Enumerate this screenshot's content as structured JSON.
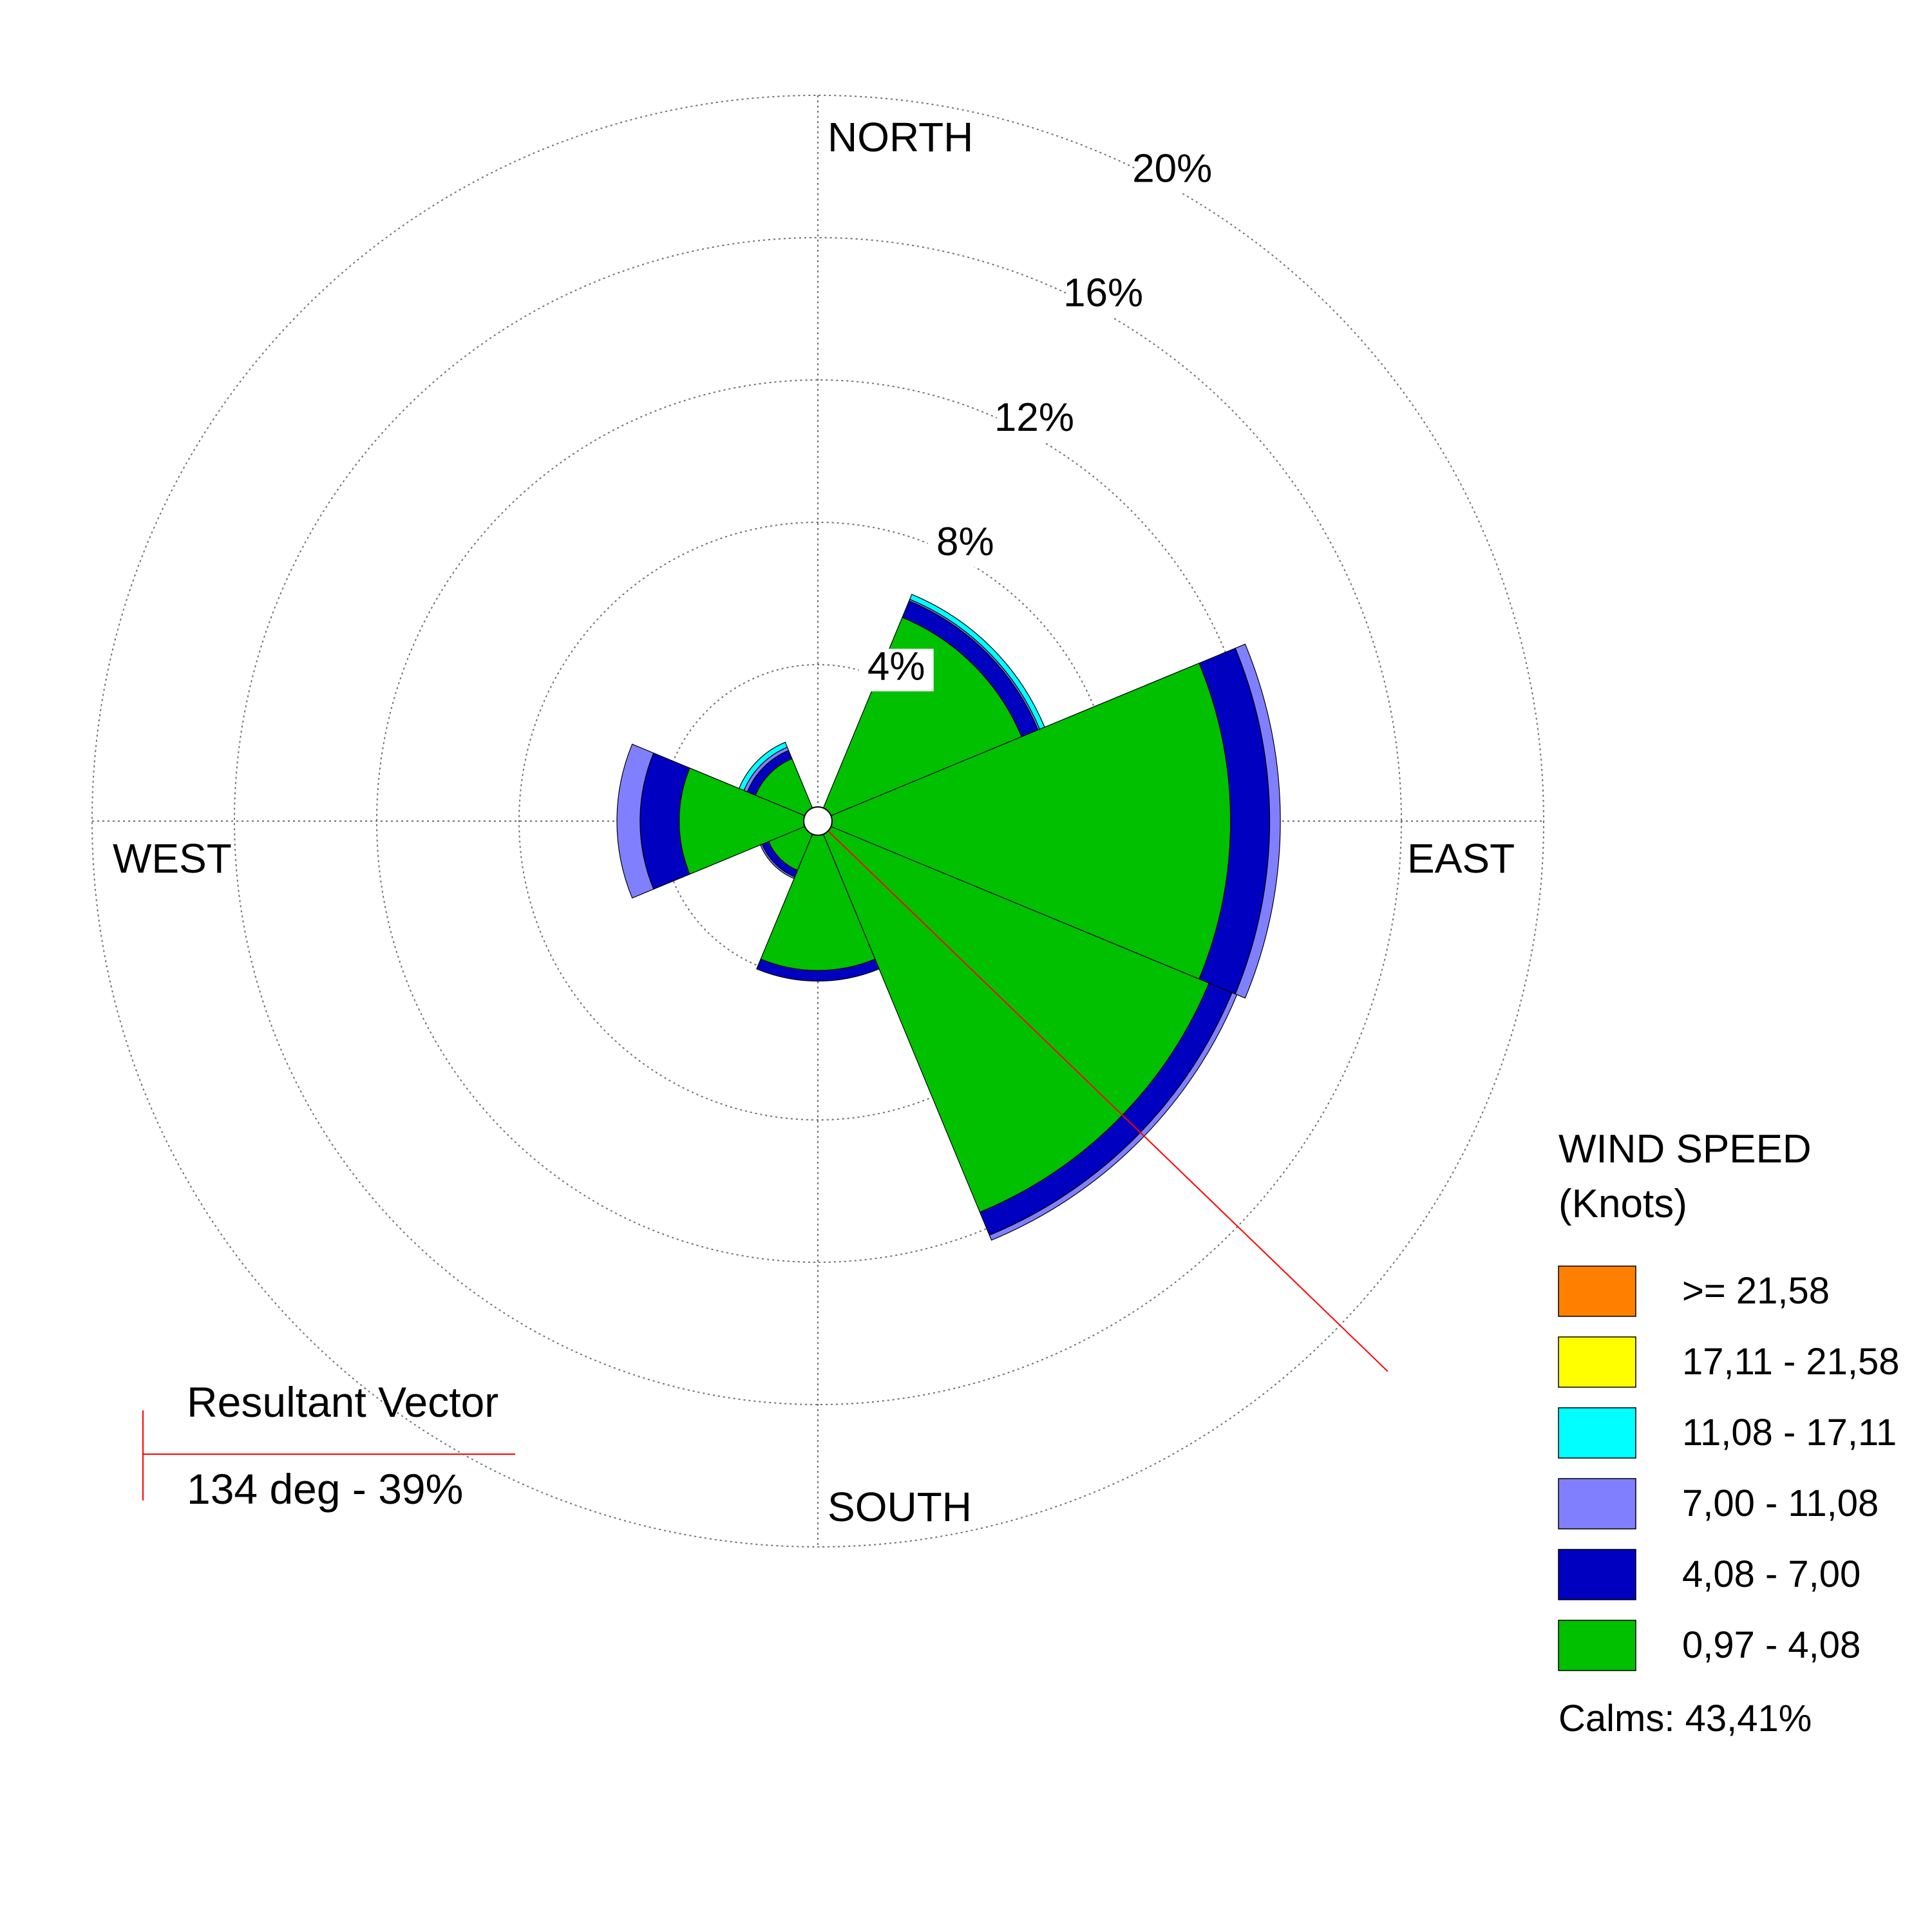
{
  "chart_data": {
    "type": "wind-rose",
    "directions": {
      "north": "NORTH",
      "east": "EAST",
      "south": "SOUTH",
      "west": "WEST"
    },
    "radial_ticks": [
      {
        "value": 4,
        "label": "4%"
      },
      {
        "value": 8,
        "label": "8%"
      },
      {
        "value": 12,
        "label": "12%"
      },
      {
        "value": 16,
        "label": "16%"
      },
      {
        "value": 20,
        "label": "20%"
      }
    ],
    "radial_max": 20,
    "units": "percent of observations",
    "legend": {
      "title_line1": "WIND SPEED",
      "title_line2": "(Knots)",
      "bins": [
        {
          "label": ">= 21,58",
          "color": "#ff8000"
        },
        {
          "label": "17,11 - 21,58",
          "color": "#ffff00"
        },
        {
          "label": "11,08 - 17,11",
          "color": "#00ffff"
        },
        {
          "label": "7,00 - 11,08",
          "color": "#8080ff"
        },
        {
          "label": "4,08 - 7,00",
          "color": "#0000c0"
        },
        {
          "label": "0,97 - 4,08",
          "color": "#00c000"
        }
      ],
      "calms": "Calms: 43,41%"
    },
    "speed_bins_inner_to_outer": [
      "0,97 - 4,08",
      "4,08 - 7,00",
      "7,00 - 11,08",
      "11,08 - 17,11",
      "17,11 - 21,58",
      ">= 21,58"
    ],
    "bin_colors_inner_to_outer": [
      "#00c000",
      "#0000c0",
      "#8080ff",
      "#00ffff",
      "#ffff00",
      "#ff8000"
    ],
    "sector_width_deg": 45,
    "sectors": [
      {
        "direction": "NNE",
        "center_deg": 22.5,
        "values": [
          0,
          0,
          0,
          0,
          0,
          0
        ]
      },
      {
        "direction": "NE-ENE",
        "center_deg": 45,
        "values": [
          5.8,
          0.5,
          0.05,
          0.15,
          0,
          0
        ]
      },
      {
        "direction": "E",
        "center_deg": 90,
        "values": [
          11.2,
          1.1,
          0.3,
          0,
          0,
          0
        ]
      },
      {
        "direction": "SE",
        "center_deg": 135,
        "values": [
          11.5,
          0.7,
          0.15,
          0,
          0,
          0
        ]
      },
      {
        "direction": "SSW",
        "center_deg": 180,
        "values": [
          3.8,
          0.3,
          0,
          0,
          0,
          0
        ]
      },
      {
        "direction": "SW",
        "center_deg": 225,
        "values": [
          1.1,
          0.2,
          0.05,
          0,
          0,
          0
        ]
      },
      {
        "direction": "W",
        "center_deg": 270,
        "values": [
          3.5,
          1.1,
          0.65,
          0,
          0,
          0
        ]
      },
      {
        "direction": "NW",
        "center_deg": 315,
        "values": [
          1.5,
          0.25,
          0.1,
          0.15,
          0,
          0
        ]
      }
    ],
    "resultant_vector": {
      "title": "Resultant Vector",
      "value_text": "134 deg - 39%",
      "direction_deg": 134,
      "color": "#ff0000"
    }
  }
}
